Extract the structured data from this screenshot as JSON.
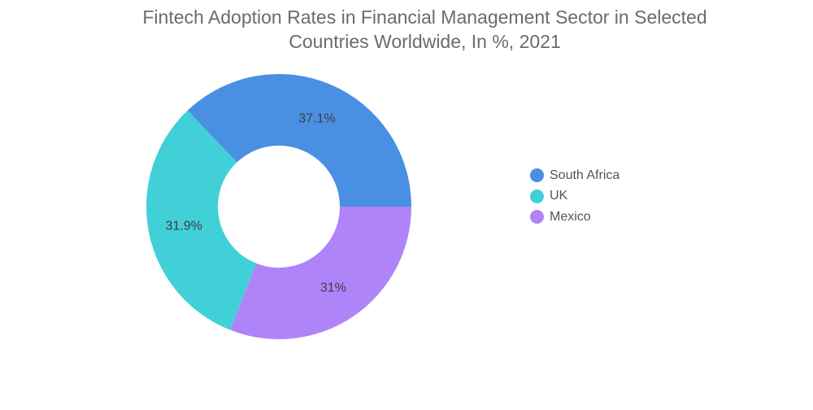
{
  "chart_data": {
    "type": "pie",
    "variant": "donut",
    "title_lines": [
      "Fintech Adoption Rates in Financial Management Sector in Selected",
      "Countries Worldwide, In %, 2021"
    ],
    "categories": [
      "South Africa",
      "UK",
      "Mexico"
    ],
    "values": [
      37.1,
      31.9,
      31
    ],
    "value_labels": [
      "37.1%",
      "31.9%",
      "31%"
    ],
    "colors": [
      "#4a90e2",
      "#41d0d8",
      "#b084f9"
    ],
    "legend_position": "right"
  }
}
